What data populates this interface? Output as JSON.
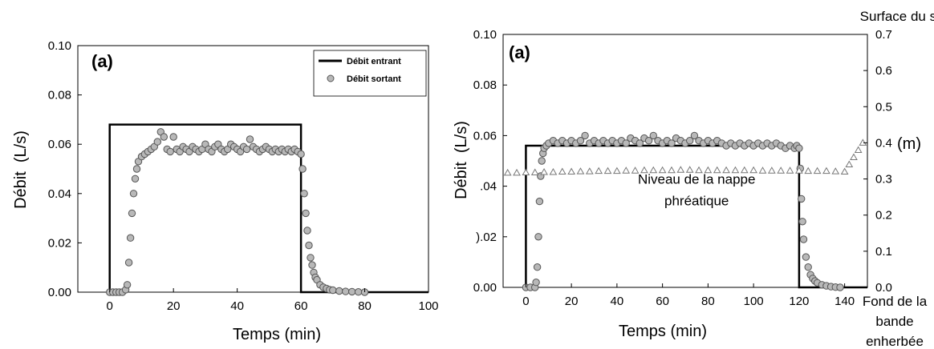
{
  "colors": {
    "inflow": "#000000",
    "outflow_fill": "#b8b8b8",
    "outflow_stroke": "#555555",
    "water_table_stroke": "#777777",
    "axis": "#000000"
  },
  "chart_data": [
    {
      "type": "scatter",
      "panel_label": "(a)",
      "xlabel": "Temps (min)",
      "ylabel": "Débit  (L/s)",
      "xlim": [
        -10,
        100
      ],
      "ylim": [
        0,
        0.1
      ],
      "xticks": [
        0,
        20,
        40,
        60,
        80,
        100
      ],
      "yticks": [
        "0.00",
        "0.02",
        "0.04",
        "0.06",
        "0.08",
        "0.10"
      ],
      "grid": false,
      "legend_position": "top-right",
      "series": [
        {
          "name": "Débit entrant",
          "style": "step-line",
          "x": [
            -1,
            0,
            0,
            60,
            60,
            100
          ],
          "y": [
            0,
            0,
            0.068,
            0.068,
            0,
            0
          ]
        },
        {
          "name": "Débit sortant",
          "style": "markers",
          "x": [
            0,
            1,
            2,
            3,
            4,
            5,
            5.5,
            6,
            6.5,
            7,
            7.5,
            8,
            8.5,
            9,
            10,
            11,
            12,
            13,
            14,
            15,
            16,
            17,
            18,
            19,
            20,
            21,
            22,
            23,
            24,
            25,
            26,
            27,
            28,
            29,
            30,
            31,
            32,
            33,
            34,
            35,
            36,
            37,
            38,
            39,
            40,
            41,
            42,
            43,
            44,
            45,
            46,
            47,
            48,
            49,
            50,
            51,
            52,
            53,
            54,
            55,
            56,
            57,
            58,
            59,
            60,
            60.5,
            61,
            61.5,
            62,
            62.5,
            63,
            63.5,
            64,
            64.5,
            65,
            66,
            67,
            68,
            69,
            70,
            72,
            74,
            76,
            78,
            80
          ],
          "y": [
            0,
            0,
            0,
            0,
            0,
            0.001,
            0.003,
            0.012,
            0.022,
            0.032,
            0.04,
            0.046,
            0.05,
            0.053,
            0.055,
            0.056,
            0.057,
            0.058,
            0.059,
            0.061,
            0.065,
            0.063,
            0.058,
            0.057,
            0.063,
            0.058,
            0.057,
            0.059,
            0.058,
            0.057,
            0.059,
            0.058,
            0.057,
            0.058,
            0.06,
            0.058,
            0.057,
            0.059,
            0.06,
            0.058,
            0.057,
            0.058,
            0.06,
            0.059,
            0.058,
            0.057,
            0.059,
            0.058,
            0.062,
            0.059,
            0.058,
            0.057,
            0.058,
            0.059,
            0.058,
            0.057,
            0.058,
            0.057,
            0.058,
            0.057,
            0.058,
            0.057,
            0.058,
            0.057,
            0.056,
            0.05,
            0.04,
            0.032,
            0.025,
            0.019,
            0.014,
            0.011,
            0.008,
            0.006,
            0.005,
            0.003,
            0.002,
            0.0015,
            0.001,
            0.0008,
            0.0005,
            0.0003,
            0.0002,
            0.0001,
            0
          ]
        }
      ]
    },
    {
      "type": "scatter",
      "panel_label": "(a)",
      "xlabel": "Temps (min)",
      "ylabel": "Débit  (L/s)",
      "y2label": "(m)",
      "xlim": [
        -10,
        150
      ],
      "ylim": [
        0,
        0.1
      ],
      "y2lim": [
        0,
        0.7
      ],
      "xticks": [
        0,
        20,
        40,
        60,
        80,
        100,
        120,
        140
      ],
      "yticks": [
        "0.00",
        ").02",
        ".04",
        "0.06",
        "0.08",
        "0.10"
      ],
      "y2ticks": [
        "0.0",
        "0.1",
        "0.2",
        "0.3",
        "0.4",
        "0.5",
        "0.6",
        "0.7"
      ],
      "grid": false,
      "annotations": [
        {
          "text": "Niveau de la nappe",
          "x": 75,
          "y": 0.041
        },
        {
          "text": "phréatique",
          "x": 75,
          "y": 0.0325
        }
      ],
      "side_labels": {
        "top": "Surface du sol",
        "bottom": [
          "Fond de la",
          "bande",
          "enherbée"
        ]
      },
      "series": [
        {
          "name": "Débit entrant",
          "style": "step-line",
          "x": [
            -1,
            0,
            0,
            120,
            120,
            150
          ],
          "y": [
            0,
            0,
            0.056,
            0.056,
            0,
            0
          ]
        },
        {
          "name": "Débit sortant",
          "style": "markers",
          "x": [
            0,
            2,
            4,
            4.5,
            5,
            5.5,
            6,
            6.5,
            7,
            7.5,
            8,
            9,
            10,
            12,
            14,
            16,
            18,
            20,
            22,
            24,
            26,
            28,
            30,
            32,
            34,
            36,
            38,
            40,
            42,
            44,
            46,
            48,
            50,
            52,
            54,
            56,
            58,
            60,
            62,
            64,
            66,
            68,
            70,
            72,
            74,
            76,
            78,
            80,
            82,
            84,
            86,
            88,
            90,
            92,
            94,
            96,
            98,
            100,
            102,
            104,
            106,
            108,
            110,
            112,
            114,
            116,
            118,
            119,
            120,
            120.5,
            121,
            121.5,
            122,
            123,
            124,
            125,
            126,
            127,
            128,
            130,
            132,
            134,
            136,
            138
          ],
          "y": [
            0,
            0,
            0,
            0.002,
            0.008,
            0.02,
            0.034,
            0.044,
            0.05,
            0.053,
            0.055,
            0.056,
            0.057,
            0.058,
            0.057,
            0.058,
            0.057,
            0.058,
            0.057,
            0.058,
            0.06,
            0.057,
            0.058,
            0.057,
            0.058,
            0.057,
            0.058,
            0.057,
            0.058,
            0.057,
            0.059,
            0.058,
            0.057,
            0.059,
            0.058,
            0.06,
            0.058,
            0.057,
            0.058,
            0.057,
            0.059,
            0.058,
            0.057,
            0.058,
            0.06,
            0.058,
            0.057,
            0.058,
            0.057,
            0.058,
            0.057,
            0.056,
            0.057,
            0.056,
            0.057,
            0.056,
            0.057,
            0.056,
            0.057,
            0.056,
            0.057,
            0.056,
            0.057,
            0.056,
            0.055,
            0.056,
            0.055,
            0.056,
            0.055,
            0.047,
            0.035,
            0.026,
            0.019,
            0.012,
            0.008,
            0.005,
            0.0035,
            0.0025,
            0.0018,
            0.001,
            0.0006,
            0.0003,
            0.0001,
            0
          ]
        },
        {
          "name": "Niveau de la nappe phréatique",
          "style": "triangles",
          "axis": "y2",
          "x": [
            -8,
            -4,
            0,
            4,
            8,
            12,
            16,
            20,
            24,
            28,
            32,
            36,
            40,
            44,
            48,
            52,
            56,
            60,
            64,
            68,
            72,
            76,
            80,
            84,
            88,
            92,
            96,
            100,
            104,
            108,
            112,
            116,
            120,
            124,
            128,
            132,
            136,
            140,
            142,
            144,
            146,
            148
          ],
          "y": [
            0.317,
            0.317,
            0.318,
            0.318,
            0.319,
            0.319,
            0.32,
            0.32,
            0.321,
            0.321,
            0.322,
            0.322,
            0.322,
            0.323,
            0.323,
            0.324,
            0.324,
            0.324,
            0.324,
            0.325,
            0.325,
            0.324,
            0.324,
            0.324,
            0.324,
            0.324,
            0.324,
            0.324,
            0.323,
            0.323,
            0.323,
            0.323,
            0.323,
            0.322,
            0.322,
            0.322,
            0.321,
            0.32,
            0.34,
            0.36,
            0.38,
            0.4
          ]
        }
      ]
    }
  ]
}
